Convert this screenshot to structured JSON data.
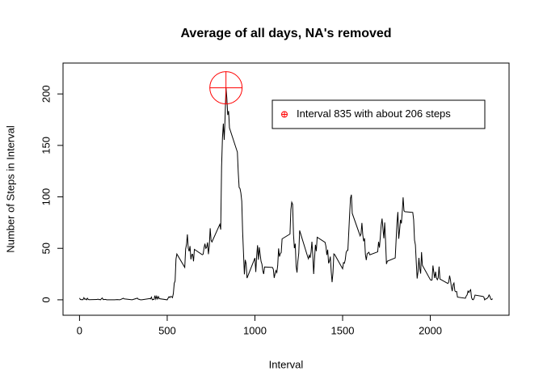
{
  "chart_data": {
    "type": "line",
    "title": "Average of all days, NA's removed",
    "xlabel": "Interval",
    "ylabel": "Number of Steps in Interval",
    "color": "#000000",
    "x": [
      0,
      5,
      10,
      15,
      20,
      25,
      30,
      35,
      40,
      45,
      50,
      55,
      100,
      105,
      110,
      115,
      120,
      125,
      130,
      135,
      140,
      145,
      150,
      155,
      200,
      215,
      230,
      250,
      255,
      300,
      330,
      335,
      340,
      345,
      350,
      355,
      400,
      405,
      410,
      415,
      420,
      425,
      430,
      435,
      440,
      445,
      450,
      455,
      500,
      505,
      510,
      515,
      520,
      525,
      530,
      535,
      540,
      545,
      550,
      555,
      600,
      605,
      610,
      615,
      620,
      625,
      630,
      635,
      640,
      645,
      650,
      655,
      700,
      705,
      710,
      715,
      720,
      725,
      730,
      735,
      740,
      745,
      750,
      755,
      800,
      805,
      810,
      815,
      820,
      825,
      830,
      835,
      840,
      845,
      850,
      855,
      900,
      905,
      910,
      915,
      920,
      925,
      930,
      935,
      940,
      945,
      950,
      955,
      1000,
      1005,
      1010,
      1015,
      1020,
      1025,
      1030,
      1035,
      1040,
      1045,
      1050,
      1055,
      1100,
      1105,
      1110,
      1115,
      1120,
      1125,
      1130,
      1135,
      1140,
      1145,
      1150,
      1155,
      1200,
      1205,
      1210,
      1215,
      1220,
      1225,
      1230,
      1235,
      1240,
      1245,
      1250,
      1255,
      1300,
      1305,
      1310,
      1315,
      1320,
      1325,
      1330,
      1335,
      1340,
      1345,
      1350,
      1355,
      1400,
      1405,
      1410,
      1415,
      1420,
      1425,
      1430,
      1435,
      1440,
      1445,
      1450,
      1455,
      1500,
      1505,
      1510,
      1515,
      1520,
      1525,
      1530,
      1535,
      1540,
      1545,
      1550,
      1555,
      1600,
      1605,
      1610,
      1615,
      1620,
      1625,
      1630,
      1635,
      1640,
      1645,
      1650,
      1655,
      1700,
      1705,
      1710,
      1715,
      1720,
      1725,
      1730,
      1735,
      1740,
      1745,
      1750,
      1755,
      1800,
      1805,
      1810,
      1815,
      1820,
      1825,
      1830,
      1835,
      1840,
      1845,
      1850,
      1855,
      1900,
      1905,
      1910,
      1915,
      1920,
      1925,
      1930,
      1935,
      1940,
      1945,
      1950,
      1955,
      2000,
      2005,
      2010,
      2015,
      2020,
      2025,
      2030,
      2035,
      2040,
      2045,
      2050,
      2055,
      2100,
      2105,
      2110,
      2115,
      2120,
      2125,
      2130,
      2135,
      2140,
      2145,
      2150,
      2155,
      2200,
      2205,
      2210,
      2215,
      2220,
      2225,
      2230,
      2235,
      2240,
      2245,
      2250,
      2255,
      2300,
      2305,
      2310,
      2315,
      2320,
      2325,
      2330,
      2335,
      2340,
      2345,
      2350,
      2355
    ],
    "values": [
      1.7,
      0.3,
      0.1,
      0.2,
      0.1,
      2.1,
      0.5,
      0.9,
      0,
      1.5,
      0.3,
      0.1,
      0.3,
      0.7,
      0.2,
      0.3,
      0,
      1.1,
      1.8,
      0.2,
      0.2,
      0.4,
      0.3,
      0,
      0,
      0.2,
      0,
      1.5,
      0.9,
      0,
      1.6,
      0.6,
      0.5,
      0.1,
      0,
      0,
      1.2,
      0.9,
      2.6,
      0,
      0.3,
      0.4,
      4.1,
      0.7,
      3.5,
      0.8,
      3.1,
      1.1,
      0,
      1.6,
      3,
      2.2,
      3.3,
      3,
      2.1,
      6.1,
      16,
      18.3,
      39.5,
      44.5,
      31.5,
      49.3,
      53.8,
      63.5,
      50,
      47.1,
      52.2,
      39.3,
      44,
      44.2,
      37.4,
      49,
      43.8,
      44.4,
      50.5,
      54.5,
      49.9,
      51,
      55.7,
      44.3,
      52.3,
      69.5,
      57.8,
      56.2,
      73.4,
      68.2,
      129.4,
      157.5,
      171.2,
      155.4,
      177.3,
      206.2,
      195.9,
      179.6,
      183.4,
      167,
      143.5,
      124,
      109.1,
      108.1,
      103.7,
      95.9,
      66.2,
      45.2,
      24.8,
      38.8,
      35,
      21.1,
      40.6,
      27,
      42.4,
      53,
      38.9,
      51,
      44,
      37.4,
      34.7,
      28.3,
      25.1,
      31.9,
      31.4,
      29.7,
      21.3,
      25.5,
      28.4,
      26.5,
      33.4,
      49.9,
      42,
      44.8,
      46,
      59.2,
      63.9,
      87.6,
      94.8,
      92.8,
      63.4,
      50.2,
      54.5,
      32.4,
      26.5,
      37.7,
      45.1,
      67.3,
      42.3,
      39.9,
      43.3,
      40.9,
      46.3,
      56.4,
      42.8,
      25.1,
      40,
      53.5,
      47.3,
      60.8,
      55.8,
      51.9,
      43.6,
      48.7,
      35.5,
      37.5,
      42,
      27.5,
      17.1,
      26.1,
      44.6,
      43.9,
      30.2,
      36.1,
      35.5,
      38.8,
      45.9,
      47.8,
      48.1,
      65.3,
      82.9,
      98.7,
      102.1,
      83.96,
      62.1,
      64.1,
      74.7,
      63.2,
      56.9,
      59.8,
      43.9,
      38.6,
      44.7,
      45.5,
      46.2,
      43.7,
      46.6,
      56.3,
      50.7,
      61.2,
      72.7,
      78.9,
      68.9,
      59.7,
      75.1,
      56.5,
      34.8,
      37.5,
      40.7,
      58,
      74.7,
      85.3,
      59.3,
      67.8,
      77.7,
      74.2,
      85.3,
      99.5,
      86.6,
      85.6,
      84.9,
      77.8,
      58,
      53.4,
      36.3,
      20.7,
      27.4,
      40.7,
      30.2,
      25.5,
      46.3,
      33.5,
      19.6,
      19,
      19.3,
      33.3,
      26.8,
      21.2,
      27.3,
      21.3,
      19.5,
      21.3,
      32.3,
      20.2,
      15.9,
      17.2,
      23.5,
      19.2,
      12.5,
      8.4,
      14.7,
      16.3,
      8.7,
      7.8,
      8.1,
      2.6,
      1.5,
      3.7,
      4.8,
      8.5,
      7.1,
      8.7,
      9.8,
      2.2,
      0.3,
      0.1,
      1.6,
      4.6,
      3.3,
      2.8,
      0,
      0.8,
      1,
      1.6,
      2.6,
      4.7,
      3.3,
      0.6,
      0.2,
      1.1
    ],
    "xlim": [
      -94,
      2449
    ],
    "ylim": [
      -15,
      230
    ],
    "xticks": [
      0,
      500,
      1000,
      1500,
      2000
    ],
    "yticks": [
      0,
      50,
      100,
      150,
      200
    ],
    "highlight": {
      "x": 835,
      "y": 206,
      "color": "#ff0000",
      "label": "Interval 835 with about 206 steps"
    },
    "legend_position": "top-right"
  }
}
